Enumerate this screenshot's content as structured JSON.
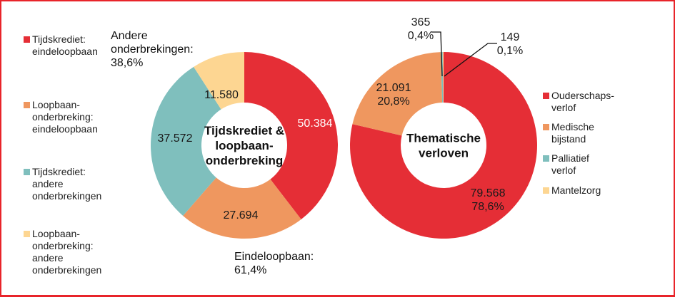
{
  "chart_data": [
    {
      "type": "pie",
      "variant": "donut",
      "center_label": "Tijdskrediet & loopbaan-onderbreking",
      "center_label_lines": [
        "Tijdskrediet &",
        "loopbaan-",
        "onderbreking"
      ],
      "slices": [
        {
          "name": "Tijdskrediet: eindeloopbaan",
          "value": 50384,
          "label": "50.384",
          "color": "#e52e36",
          "label_color": "#ffffff"
        },
        {
          "name": "Loopbaan-onderbreking: eindeloopbaan",
          "value": 27694,
          "label": "27.694",
          "color": "#ef975f",
          "label_color": "#1a1a1a"
        },
        {
          "name": "Tijdskrediet: andere onderbrekingen",
          "value": 37572,
          "label": "37.572",
          "color": "#7fbfbd",
          "label_color": "#1a1a1a"
        },
        {
          "name": "Loopbaan-onderbreking: andere onderbrekingen",
          "value": 11580,
          "label": "11.580",
          "color": "#fdd692",
          "label_color": "#1a1a1a"
        }
      ],
      "legend": {
        "placement": "left",
        "items": [
          {
            "text": "Tijdskrediet:\neindeloopbaan",
            "color": "#e52e36"
          },
          {
            "text": "Loopbaan-\nonderbreking:\neindeloopbaan",
            "color": "#ef975f"
          },
          {
            "text": "Tijdskrediet:\nandere\nonderbrekingen",
            "color": "#7fbfbd"
          },
          {
            "text": "Loopbaan-\nonderbreking:\nandere\nonderbrekingen",
            "color": "#fdd692"
          }
        ]
      },
      "annotations": [
        {
          "text": "Andere\nonderbrekingen:\n38,6%"
        },
        {
          "text": "Eindeloopbaan:\n61,4%"
        }
      ]
    },
    {
      "type": "pie",
      "variant": "donut",
      "center_label": "Thematische verloven",
      "center_label_lines": [
        "Thematische",
        "verloven"
      ],
      "slices": [
        {
          "name": "Ouderschapsverlof",
          "value": 79568,
          "label": "79.568\n78,6%",
          "label_lines": [
            "79.568",
            "78,6%"
          ],
          "color": "#e52e36",
          "label_color": "#1a1a1a"
        },
        {
          "name": "Medische bijstand",
          "value": 21091,
          "label": "21.091\n20,8%",
          "label_lines": [
            "21.091",
            "20,8%"
          ],
          "color": "#ef975f",
          "label_color": "#1a1a1a"
        },
        {
          "name": "Palliatief verlof",
          "value": 365,
          "label": "365\n0,4%",
          "label_lines": [
            "365",
            "0,4%"
          ],
          "color": "#7fbfbd",
          "label_color": "#1a1a1a"
        },
        {
          "name": "Mantelzorg",
          "value": 149,
          "label": "149\n0,1%",
          "label_lines": [
            "149",
            "0,1%"
          ],
          "color": "#fdd692",
          "label_color": "#1a1a1a"
        }
      ],
      "legend": {
        "placement": "right",
        "items": [
          {
            "text": "Ouderschaps-\nverlof",
            "color": "#e52e36"
          },
          {
            "text": "Medische bijstand",
            "color": "#ef975f"
          },
          {
            "text": "Palliatief verlof",
            "color": "#7fbfbd"
          },
          {
            "text": "Mantelzorg",
            "color": "#fdd692"
          }
        ]
      }
    }
  ],
  "frame_color": "#e8242a"
}
